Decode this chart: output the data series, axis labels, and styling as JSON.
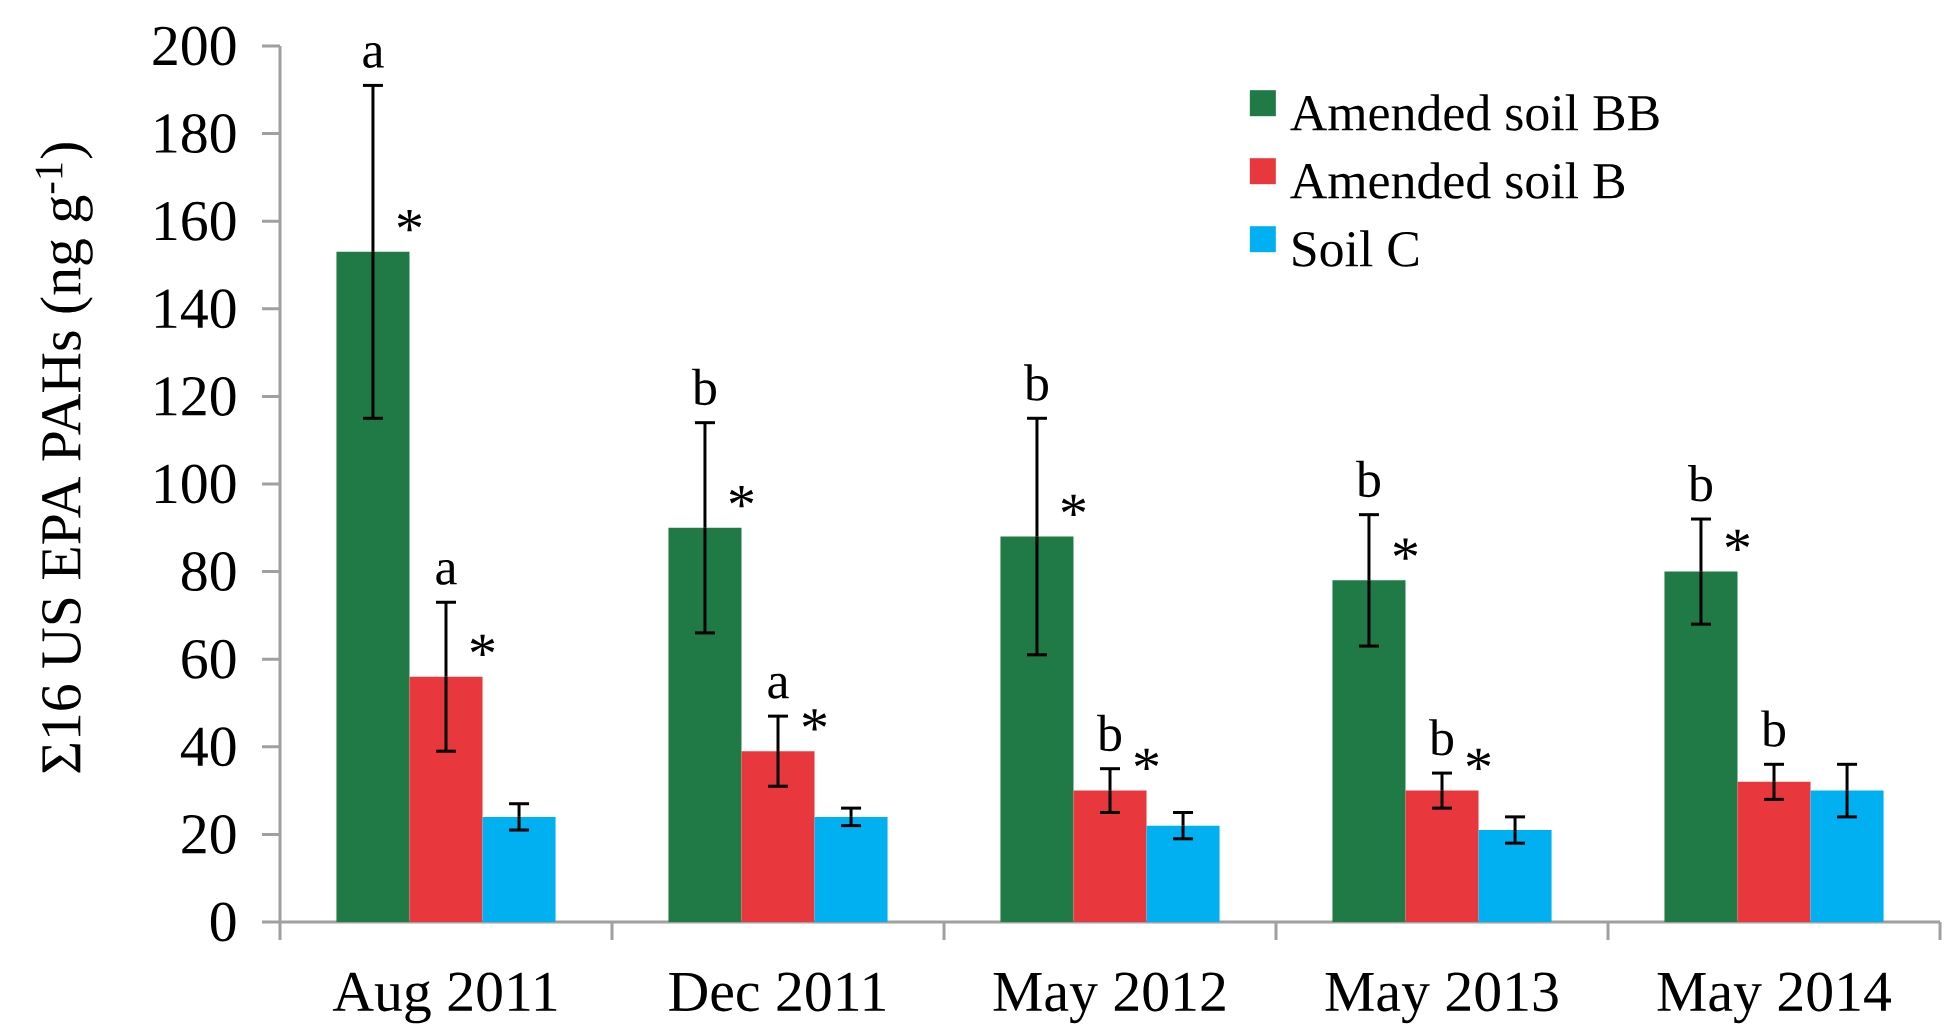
{
  "chart_data": {
    "type": "bar",
    "ylabel": "Σ16 US EPA PAHs (ng g$^{-1}$)",
    "categories": [
      "Aug 2011",
      "Dec 2011",
      "May 2012",
      "May 2013",
      "May 2014"
    ],
    "series": [
      {
        "name": "Amended soil BB",
        "color": "#1f7a45",
        "values": [
          153,
          90,
          88,
          78,
          80
        ],
        "errors": [
          38,
          24,
          27,
          15,
          12
        ]
      },
      {
        "name": "Amended soil B",
        "color": "#e8383d",
        "values": [
          56,
          39,
          30,
          30,
          32
        ],
        "errors": [
          17,
          8,
          5,
          4,
          4
        ]
      },
      {
        "name": "Soil C",
        "color": "#00b0f0",
        "values": [
          24,
          24,
          22,
          21,
          30
        ],
        "errors": [
          3,
          2,
          3,
          3,
          6
        ]
      }
    ],
    "ylim": [
      0,
      200
    ],
    "yticks": [
      0,
      20,
      40,
      60,
      80,
      100,
      120,
      140,
      160,
      180,
      200
    ],
    "legend": "top right",
    "annotations": [
      {
        "text": "a",
        "y": 191
      },
      {
        "text": "*",
        "y": 153
      },
      {
        "text": "a",
        "x": "Aug 2011",
        "y": 73
      },
      {
        "text": "*",
        "x": "Aug 2011",
        "y": 56
      },
      {
        "text": "b",
        "y": 114
      },
      {
        "text": "*",
        "y": 90
      },
      {
        "text": "a",
        "x": "Dec 2011",
        "y": 47
      },
      {
        "text": "*",
        "x": "Dec 2011",
        "y": 39
      },
      {
        "text": "b",
        "y": 115
      },
      {
        "text": "*",
        "y": 88
      },
      {
        "text": "b",
        "x": "May 2012",
        "y": 35
      },
      {
        "text": "*",
        "x": "May 2012",
        "y": 30
      },
      {
        "text": "b",
        "y": 93
      },
      {
        "text": "*",
        "y": 78
      },
      {
        "text": "b",
        "x": "May 2013",
        "y": 34
      },
      {
        "text": "*",
        "x": "May 2013",
        "y": 30
      },
      {
        "text": "b",
        "y": 92
      },
      {
        "text": "*",
        "y": 80
      },
      {
        "text": "b",
        "x": "May 2014",
        "y": 36
      }
    ]
  }
}
